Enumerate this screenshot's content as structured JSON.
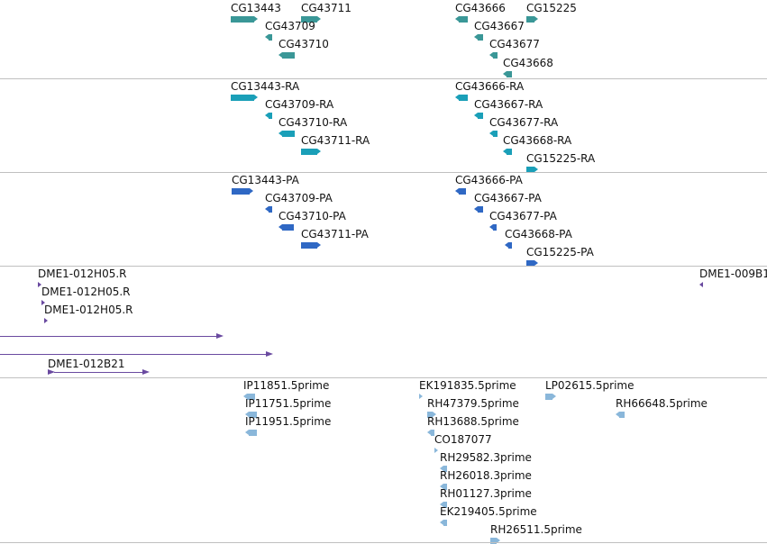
{
  "colors": {
    "gene": "#3a9797",
    "mrna": "#1a9fb8",
    "protein": "#2f68c4",
    "bac": "#6a4aa0",
    "est": "#8ab7da"
  },
  "genes": [
    {
      "name": "CG13443",
      "strand": "+"
    },
    {
      "name": "CG43711",
      "strand": "+"
    },
    {
      "name": "CG43709",
      "strand": "-"
    },
    {
      "name": "CG43710",
      "strand": "-"
    },
    {
      "name": "CG43666",
      "strand": "-"
    },
    {
      "name": "CG15225",
      "strand": "+"
    },
    {
      "name": "CG43667",
      "strand": "-"
    },
    {
      "name": "CG43677",
      "strand": "-"
    },
    {
      "name": "CG43668",
      "strand": "-"
    }
  ],
  "transcripts": [
    {
      "name": "CG13443-RA",
      "strand": "+"
    },
    {
      "name": "CG43709-RA",
      "strand": "-"
    },
    {
      "name": "CG43710-RA",
      "strand": "-"
    },
    {
      "name": "CG43711-RA",
      "strand": "+"
    },
    {
      "name": "CG43666-RA",
      "strand": "-"
    },
    {
      "name": "CG43667-RA",
      "strand": "-"
    },
    {
      "name": "CG43677-RA",
      "strand": "-"
    },
    {
      "name": "CG43668-RA",
      "strand": "-"
    },
    {
      "name": "CG15225-RA",
      "strand": "+"
    }
  ],
  "proteins": [
    {
      "name": "CG13443-PA",
      "strand": "+"
    },
    {
      "name": "CG43709-PA",
      "strand": "-"
    },
    {
      "name": "CG43710-PA",
      "strand": "-"
    },
    {
      "name": "CG43711-PA",
      "strand": "+"
    },
    {
      "name": "CG43666-PA",
      "strand": "-"
    },
    {
      "name": "CG43667-PA",
      "strand": "-"
    },
    {
      "name": "CG43677-PA",
      "strand": "-"
    },
    {
      "name": "CG43668-PA",
      "strand": "-"
    },
    {
      "name": "CG15225-PA",
      "strand": "+"
    }
  ],
  "bac_ends": [
    {
      "name": "DME1-012H05.R"
    },
    {
      "name": "DME1-012H05.R"
    },
    {
      "name": "DME1-012H05.R"
    },
    {
      "name": "DME1-009B1"
    },
    {
      "name": "DME1-012B21"
    }
  ],
  "ests": [
    {
      "name": "IP11851.5prime"
    },
    {
      "name": "IP11751.5prime"
    },
    {
      "name": "IP11951.5prime"
    },
    {
      "name": "EK191835.5prime"
    },
    {
      "name": "LP02615.5prime"
    },
    {
      "name": "RH47379.5prime"
    },
    {
      "name": "RH66648.5prime"
    },
    {
      "name": "RH13688.5prime"
    },
    {
      "name": "CO187077"
    },
    {
      "name": "RH29582.3prime"
    },
    {
      "name": "RH26018.3prime"
    },
    {
      "name": "RH01127.3prime"
    },
    {
      "name": "EK219405.5prime"
    },
    {
      "name": "RH26511.5prime"
    }
  ]
}
